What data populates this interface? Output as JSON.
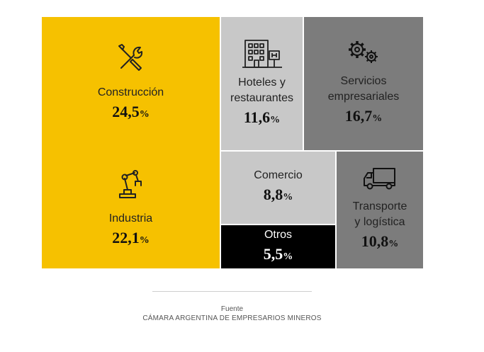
{
  "chart_data": {
    "type": "treemap",
    "unit": "%",
    "items": [
      {
        "label": "Construcción",
        "value": 24.5,
        "display": "24,5",
        "color": "#F6C100",
        "icon": "tools-icon"
      },
      {
        "label": "Industria",
        "value": 22.1,
        "display": "22,1",
        "color": "#F6C100",
        "icon": "robot-arm-icon"
      },
      {
        "label": "Hoteles y restaurantes",
        "label_lines": [
          "Hoteles y",
          "restaurantes"
        ],
        "value": 11.6,
        "display": "11,6",
        "color": "#C8C8C8",
        "icon": "hotel-icon"
      },
      {
        "label": "Servicios empresariales",
        "label_lines": [
          "Servicios",
          "empresariales"
        ],
        "value": 16.7,
        "display": "16,7",
        "color": "#7C7C7C",
        "icon": "gears-icon"
      },
      {
        "label": "Comercio",
        "value": 8.8,
        "display": "8,8",
        "color": "#C8C8C8"
      },
      {
        "label": "Otros",
        "value": 5.5,
        "display": "5,5",
        "color": "#000000"
      },
      {
        "label": "Transporte y logística",
        "label_lines": [
          "Transporte",
          "y logística"
        ],
        "value": 10.8,
        "display": "10,8",
        "color": "#7C7C7C",
        "icon": "truck-icon"
      }
    ],
    "pct_symbol": "%"
  },
  "source": {
    "label": "Fuente",
    "text": "CÁMARA ARGENTINA DE EMPRESARIOS MINEROS"
  }
}
